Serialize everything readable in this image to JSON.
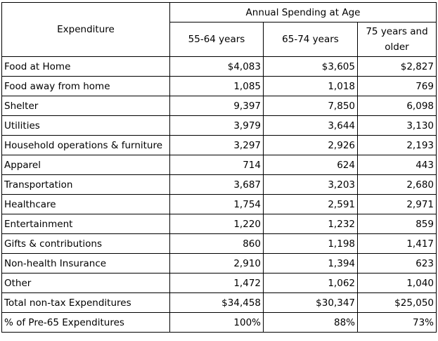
{
  "table": {
    "header": {
      "expenditure": "Expenditure",
      "group": "Annual Spending at Age",
      "columns": [
        "55-64 years",
        "65-74 years",
        "75 years and older"
      ]
    },
    "rows": [
      {
        "label": "Food at Home",
        "values": [
          "$4,083",
          "$3,605",
          "$2,827"
        ]
      },
      {
        "label": "Food away from home",
        "values": [
          "1,085",
          "1,018",
          "769"
        ]
      },
      {
        "label": "Shelter",
        "values": [
          "9,397",
          "7,850",
          "6,098"
        ]
      },
      {
        "label": "Utilities",
        "values": [
          "3,979",
          "3,644",
          "3,130"
        ]
      },
      {
        "label": "Household operations & furniture",
        "values": [
          "3,297",
          "2,926",
          "2,193"
        ]
      },
      {
        "label": "Apparel",
        "values": [
          "714",
          "624",
          "443"
        ]
      },
      {
        "label": "Transportation",
        "values": [
          "3,687",
          "3,203",
          "2,680"
        ]
      },
      {
        "label": "Healthcare",
        "values": [
          "1,754",
          "2,591",
          "2,971"
        ]
      },
      {
        "label": "Entertainment",
        "values": [
          "1,220",
          "1,232",
          "859"
        ]
      },
      {
        "label": "Gifts & contributions",
        "values": [
          "860",
          "1,198",
          "1,417"
        ]
      },
      {
        "label": "Non-health Insurance",
        "values": [
          "2,910",
          "1,394",
          "623"
        ]
      },
      {
        "label": "Other",
        "values": [
          "1,472",
          "1,062",
          "1,040"
        ]
      },
      {
        "label": "Total non-tax Expenditures",
        "values": [
          "$34,458",
          "$30,347",
          "$25,050"
        ]
      },
      {
        "label": "% of Pre-65 Expenditures",
        "values": [
          "100%",
          "88%",
          "73%"
        ],
        "bold": true
      }
    ]
  }
}
